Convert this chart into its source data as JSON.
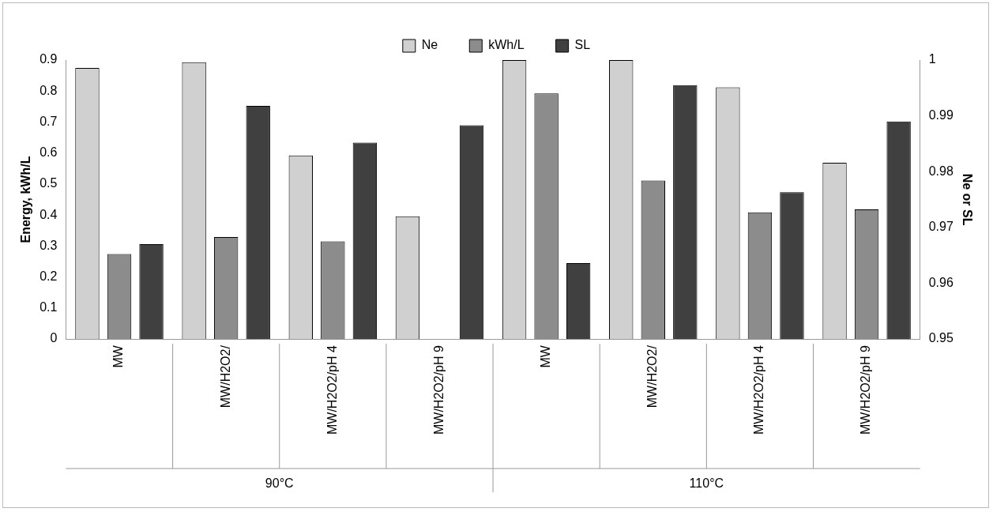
{
  "chart_data": {
    "type": "bar",
    "ylabel": "Energy, kWh/L",
    "y2label": "Ne or SL",
    "categories": [
      "MW",
      "MW/H2O2/",
      "MW/H2O2/pH 4",
      "MW/H2O2/pH 9",
      "MW",
      "MW/H2O2/",
      "MW/H2O2/pH 4",
      "MW/H2O2/pH 9"
    ],
    "series": [
      {
        "name": "Ne",
        "color": "#d0d0d0",
        "axis": "y2",
        "values": [
          0.9986,
          0.9996,
          0.9829,
          0.972,
          1.0,
          1.0,
          0.9951,
          0.9816
        ]
      },
      {
        "name": "kWh/L",
        "color": "#8c8c8c",
        "values": [
          0.274,
          0.329,
          0.315,
          null,
          0.792,
          0.511,
          0.409,
          0.418
        ]
      },
      {
        "name": "SL",
        "color": "#404040",
        "axis": "y2",
        "values": [
          0.967,
          0.9918,
          0.9852,
          0.9883,
          0.9636,
          0.9955,
          0.9763,
          0.989
        ]
      }
    ],
    "ylim": [
      0,
      0.9
    ],
    "yticks": [
      0,
      0.1,
      0.2,
      0.3,
      0.4,
      0.5,
      0.6,
      0.7,
      0.8,
      0.9
    ],
    "y2lim": [
      0.95,
      1
    ],
    "y2ticks": [
      0.95,
      0.96,
      0.97,
      0.98,
      0.99,
      1
    ],
    "annotations": [
      "90°C",
      "110°C"
    ],
    "grid": false,
    "legend": "top"
  }
}
